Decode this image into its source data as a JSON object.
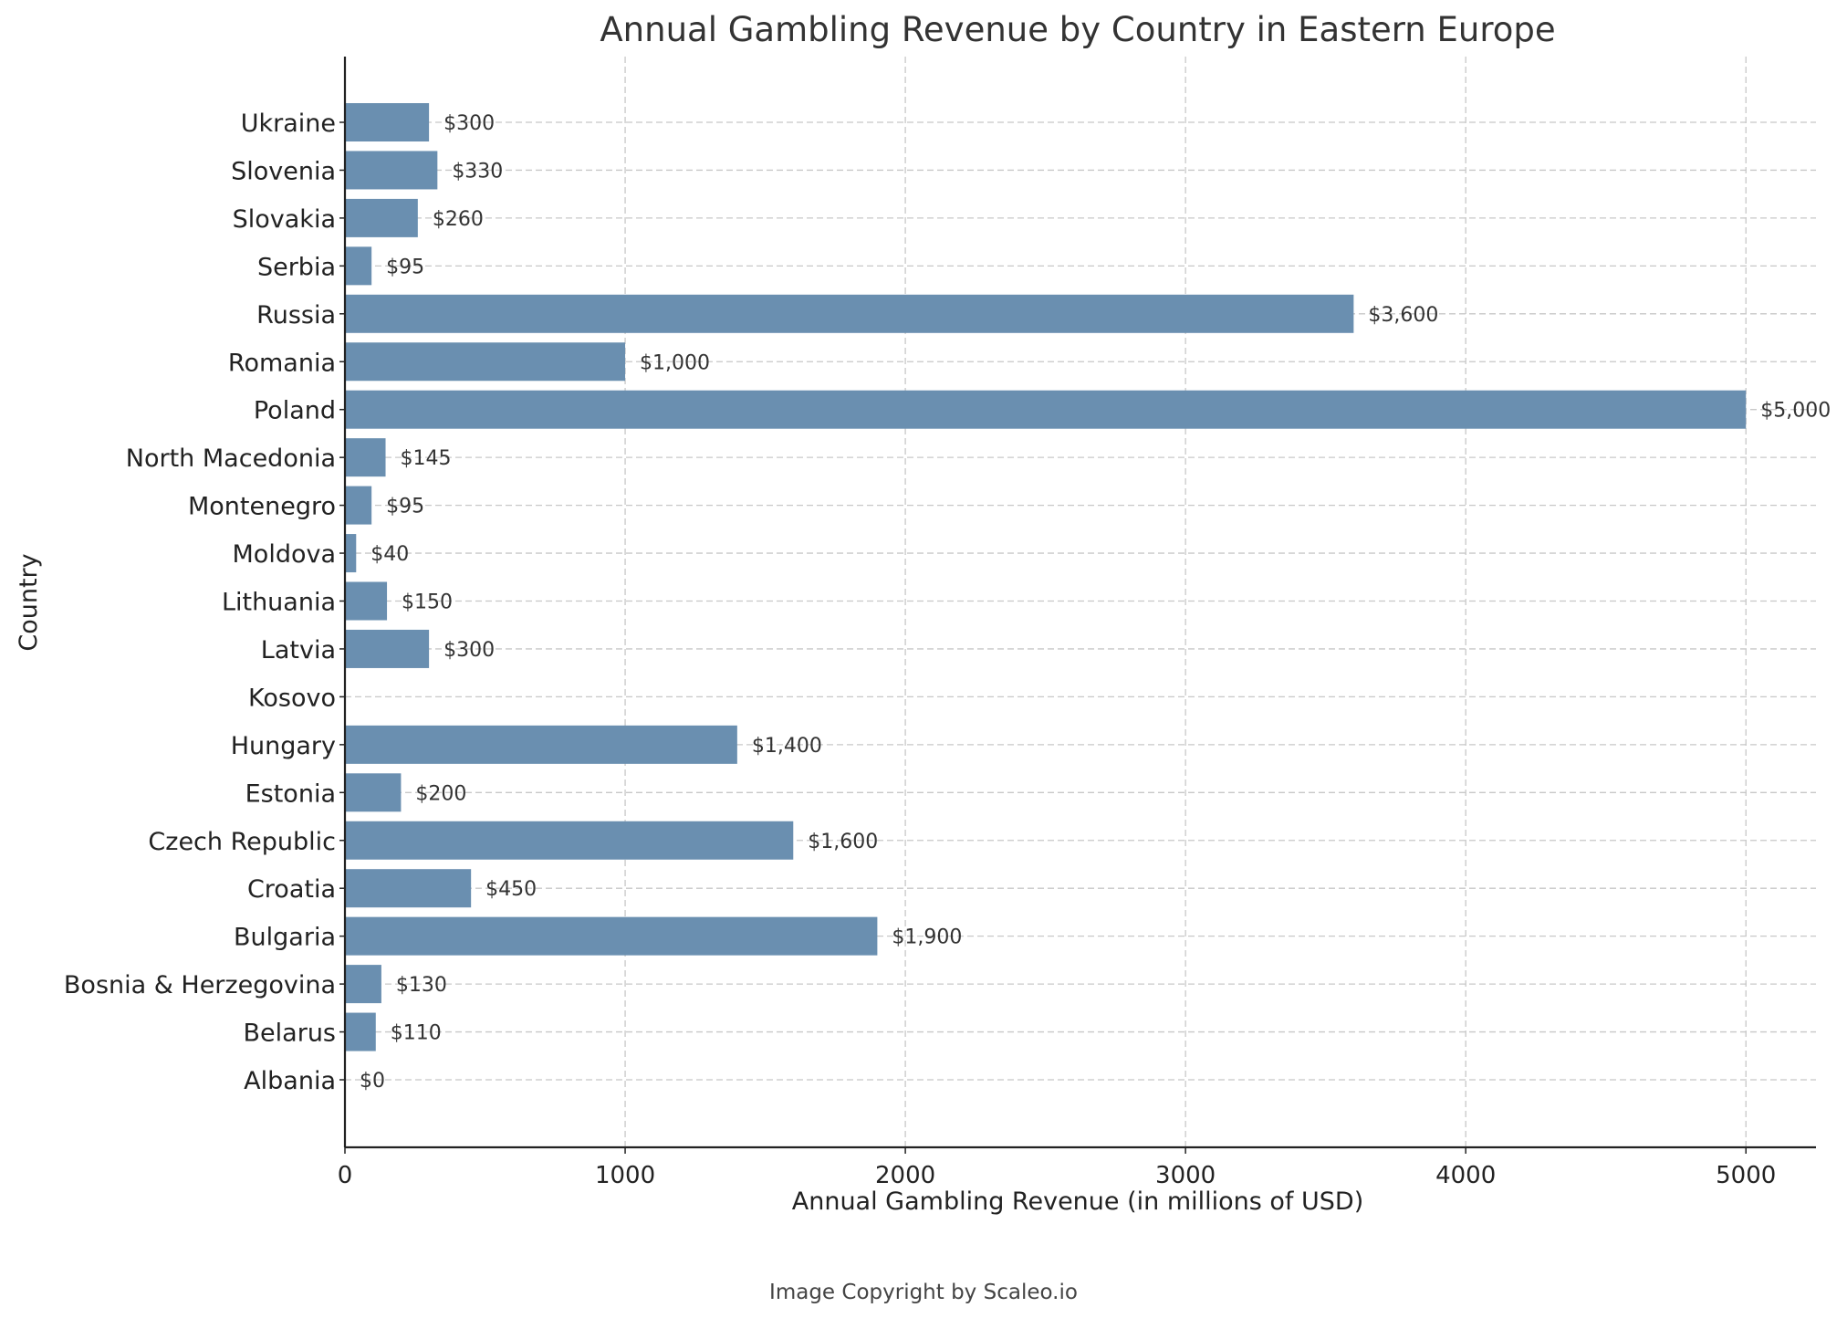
{
  "chart_data": {
    "type": "bar",
    "orientation": "horizontal",
    "title": "Annual Gambling Revenue by Country in Eastern Europe",
    "xlabel": "Annual Gambling Revenue (in millions of USD)",
    "ylabel": "Country",
    "xlim": [
      0,
      5250
    ],
    "xticks": [
      0,
      1000,
      2000,
      3000,
      4000,
      5000
    ],
    "grid": true,
    "bar_color": "#6a8fb0",
    "categories": [
      "Albania",
      "Belarus",
      "Bosnia & Herzegovina",
      "Bulgaria",
      "Croatia",
      "Czech Republic",
      "Estonia",
      "Hungary",
      "Kosovo",
      "Latvia",
      "Lithuania",
      "Moldova",
      "Montenegro",
      "North Macedonia",
      "Poland",
      "Romania",
      "Russia",
      "Serbia",
      "Slovakia",
      "Slovenia",
      "Ukraine"
    ],
    "values": [
      0,
      110,
      130,
      1900,
      450,
      1600,
      200,
      1400,
      null,
      300,
      150,
      40,
      95,
      145,
      5000,
      1000,
      3600,
      95,
      260,
      330,
      300
    ],
    "data_labels": [
      "$0",
      "$110",
      "$130",
      "$1,900",
      "$450",
      "$1,600",
      "$200",
      "$1,400",
      "",
      "$300",
      "$150",
      "$40",
      "$95",
      "$145",
      "$5,000",
      "$1,000",
      "$3,600",
      "$95",
      "$260",
      "$330",
      "$300"
    ]
  },
  "footer": {
    "credit": "Image Copyright by Scaleo.io"
  }
}
